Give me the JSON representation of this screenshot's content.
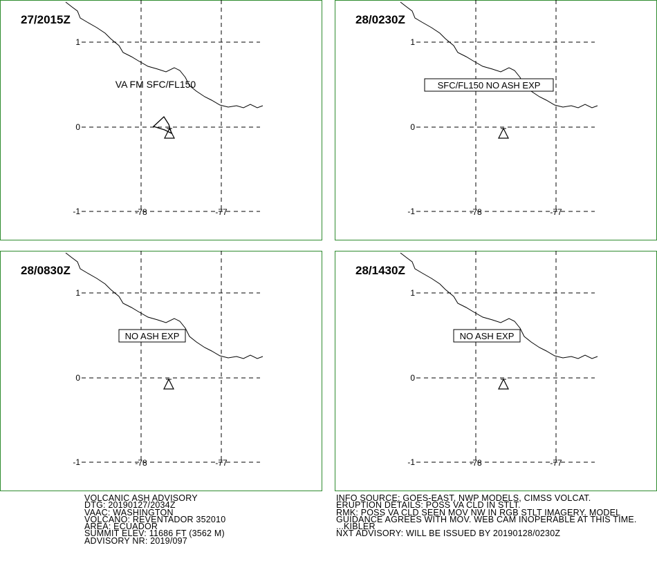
{
  "panels": [
    {
      "time": "27/2015Z",
      "annotation": "VA FM SFC/FL150",
      "boxed": false,
      "ash_polygon": true
    },
    {
      "time": "28/0230Z",
      "annotation": "SFC/FL150 NO ASH EXP",
      "boxed": true,
      "ash_polygon": false
    },
    {
      "time": "28/0830Z",
      "annotation": "NO ASH EXP",
      "boxed": true,
      "ash_polygon": false
    },
    {
      "time": "28/1430Z",
      "annotation": "NO ASH EXP",
      "boxed": true,
      "ash_polygon": false
    }
  ],
  "lat_labels": [
    "1",
    "0",
    "-1"
  ],
  "lon_labels": [
    "-78",
    "-77"
  ],
  "advisory_left": [
    "VOLCANIC ASH ADVISORY",
    "DTG: 20190127/2034Z",
    "VAAC: WASHINGTON",
    "VOLCANO: REVENTADOR 352010",
    "AREA: ECUADOR",
    "SUMMIT ELEV: 11686 FT (3562 M)",
    "ADVISORY NR: 2019/097"
  ],
  "advisory_right": [
    "INFO SOURCE: GOES-EAST, NWP MODELS, CIMSS VOLCAT.",
    "ERUPTION DETAILS: POSS VA CLD IN STLT.",
    "RMK: POSS VA CLD SEEN MOV NW IN RGB STLT IMAGERY. MODEL",
    "GUIDANCE AGREES WITH MOV. WEB CAM INOPERABLE AT THIS TIME.",
    "...KIBLER",
    "NXT ADVISORY: WILL BE ISSUED BY 20190128/0230Z"
  ]
}
